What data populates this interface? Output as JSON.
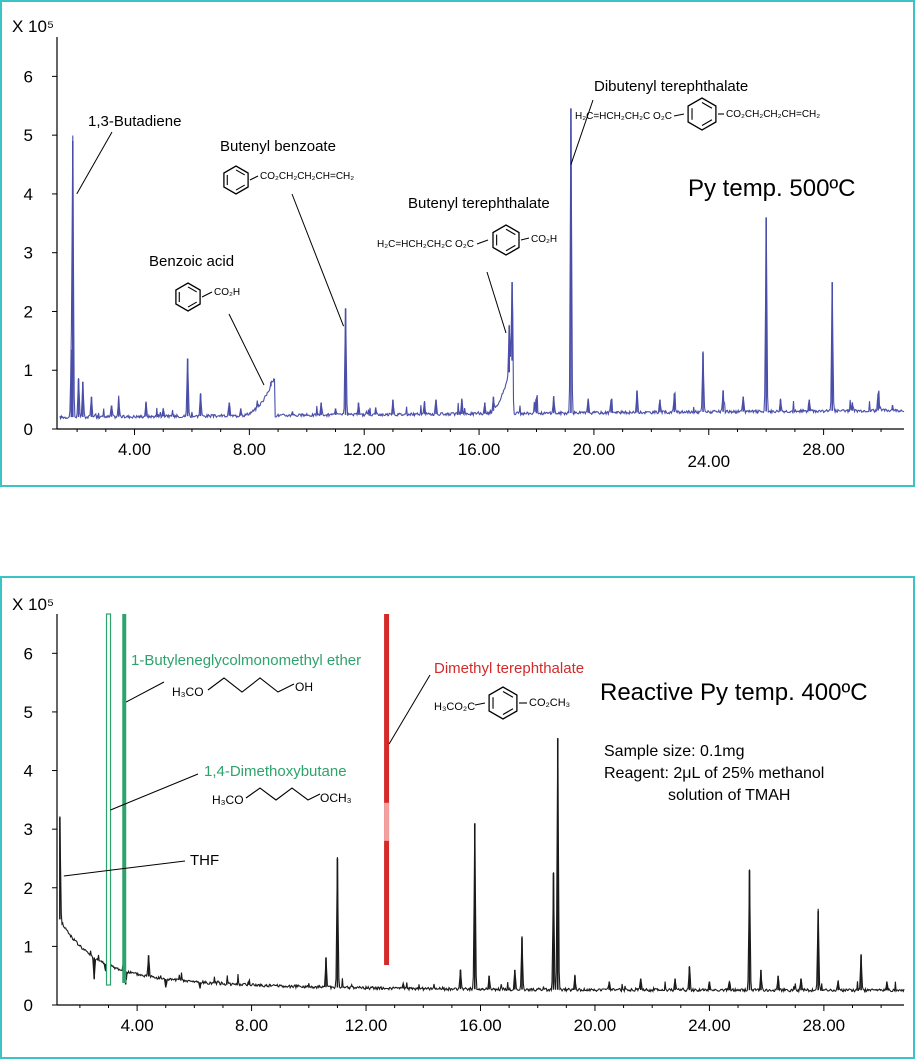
{
  "chart_data": [
    {
      "type": "line",
      "title": "",
      "condition_label": "Py temp. 500ºC",
      "y_multiplier_label": "X 10⁵",
      "xlabel": "",
      "ylabel": "",
      "xlim": [
        1.3,
        30.8
      ],
      "ylim": [
        0,
        6.5
      ],
      "x_ticks": [
        "4.00",
        "8.00",
        "12.00",
        "16.00",
        "20.00",
        "24.00",
        "28.00"
      ],
      "x_tick_values": [
        4,
        8,
        12,
        16,
        20,
        24,
        28
      ],
      "y_ticks": [
        "0",
        "1",
        "2",
        "3",
        "4",
        "5",
        "6"
      ],
      "y_tick_values": [
        0,
        1,
        2,
        3,
        4,
        5,
        6
      ],
      "line_color": "#4a4ea8",
      "baseline": 0.2,
      "peaks": [
        {
          "x": 1.85,
          "y": 4.9
        },
        {
          "x": 1.8,
          "y": 1.35
        },
        {
          "x": 2.05,
          "y": 0.85
        },
        {
          "x": 2.2,
          "y": 0.8
        },
        {
          "x": 2.5,
          "y": 0.55
        },
        {
          "x": 3.2,
          "y": 0.4
        },
        {
          "x": 3.45,
          "y": 0.5
        },
        {
          "x": 4.4,
          "y": 0.45
        },
        {
          "x": 5.0,
          "y": 0.35
        },
        {
          "x": 5.85,
          "y": 1.2
        },
        {
          "x": 6.3,
          "y": 0.6
        },
        {
          "x": 7.3,
          "y": 0.45
        },
        {
          "x": 7.7,
          "y": 0.35
        },
        {
          "x": 8.75,
          "y": 0.8
        },
        {
          "x": 9.5,
          "y": 0.3
        },
        {
          "x": 10.5,
          "y": 0.45
        },
        {
          "x": 11.0,
          "y": 0.35
        },
        {
          "x": 11.35,
          "y": 2.05
        },
        {
          "x": 11.8,
          "y": 0.45
        },
        {
          "x": 12.4,
          "y": 0.35
        },
        {
          "x": 13.0,
          "y": 0.5
        },
        {
          "x": 14.1,
          "y": 0.45
        },
        {
          "x": 14.5,
          "y": 0.5
        },
        {
          "x": 15.4,
          "y": 0.5
        },
        {
          "x": 16.2,
          "y": 0.45
        },
        {
          "x": 16.5,
          "y": 0.55
        },
        {
          "x": 17.05,
          "y": 1.75
        },
        {
          "x": 17.15,
          "y": 2.5
        },
        {
          "x": 18.0,
          "y": 0.5
        },
        {
          "x": 18.6,
          "y": 0.55
        },
        {
          "x": 19.2,
          "y": 5.45
        },
        {
          "x": 19.8,
          "y": 0.5
        },
        {
          "x": 20.6,
          "y": 0.5
        },
        {
          "x": 21.5,
          "y": 0.65
        },
        {
          "x": 22.3,
          "y": 0.5
        },
        {
          "x": 22.8,
          "y": 0.6
        },
        {
          "x": 23.8,
          "y": 1.3
        },
        {
          "x": 24.5,
          "y": 0.65
        },
        {
          "x": 25.2,
          "y": 0.55
        },
        {
          "x": 26.0,
          "y": 3.6
        },
        {
          "x": 26.5,
          "y": 0.5
        },
        {
          "x": 27.5,
          "y": 0.5
        },
        {
          "x": 28.3,
          "y": 2.5
        },
        {
          "x": 29.0,
          "y": 0.45
        },
        {
          "x": 29.9,
          "y": 0.6
        },
        {
          "x": 30.4,
          "y": 0.4
        }
      ],
      "annotations": [
        {
          "label": "1,3-Butadiene",
          "formula": "",
          "peak_x": 1.85
        },
        {
          "label": "Benzoic acid",
          "formula": "CO₂H",
          "peak_x": 8.75
        },
        {
          "label": "Butenyl benzoate",
          "formula": "CO₂CH₂CH₂CH=CH₂",
          "peak_x": 11.35
        },
        {
          "label": "Butenyl terephthalate",
          "formula_left": "H₂C=HCH₂CH₂C O₂C",
          "formula_right": "CO₂H",
          "peak_x": 17.15
        },
        {
          "label": "Dibutenyl terephthalate",
          "formula_left": "H₂C=HCH₂CH₂C O₂C",
          "formula_right": "CO₂CH₂CH₂CH=CH₂",
          "peak_x": 19.2
        }
      ]
    },
    {
      "type": "line",
      "title": "",
      "condition_label": "Reactive Py temp. 400ºC",
      "y_multiplier_label": "X 10⁵",
      "sample_size": "Sample size: 0.1mg",
      "reagent_line1": "Reagent: 2μL of 25% methanol",
      "reagent_line2": "solution of TMAH",
      "xlabel": "",
      "ylabel": "",
      "xlim": [
        1.2,
        30.8
      ],
      "ylim": [
        0,
        6.5
      ],
      "x_ticks": [
        "4.00",
        "8.00",
        "12.00",
        "16.00",
        "20.00",
        "24.00",
        "28.00"
      ],
      "x_tick_values": [
        4,
        8,
        12,
        16,
        20,
        24,
        28
      ],
      "y_ticks": [
        "0",
        "1",
        "2",
        "3",
        "4",
        "5",
        "6"
      ],
      "y_tick_values": [
        0,
        1,
        2,
        3,
        4,
        5,
        6
      ],
      "line_color": "#1a1a1a",
      "highlight_green": "#2ea36b",
      "highlight_red": "#d42a2a",
      "highlight_pink": "#f2a0a0",
      "baseline_end": 0.25,
      "peaks": [
        {
          "x": 1.3,
          "y": 3.2
        },
        {
          "x": 2.5,
          "y": 0.45
        },
        {
          "x": 2.9,
          "y": 0.6
        },
        {
          "x": 3.6,
          "y": 0.35
        },
        {
          "x": 4.4,
          "y": 0.85
        },
        {
          "x": 5.0,
          "y": 0.3
        },
        {
          "x": 6.2,
          "y": 0.3
        },
        {
          "x": 7.9,
          "y": 0.4
        },
        {
          "x": 10.6,
          "y": 0.8
        },
        {
          "x": 11.0,
          "y": 2.5
        },
        {
          "x": 12.2,
          "y": 0.3
        },
        {
          "x": 13.3,
          "y": 0.35
        },
        {
          "x": 15.3,
          "y": 0.6
        },
        {
          "x": 15.8,
          "y": 3.1
        },
        {
          "x": 16.3,
          "y": 0.5
        },
        {
          "x": 17.2,
          "y": 0.6
        },
        {
          "x": 17.45,
          "y": 1.15
        },
        {
          "x": 18.55,
          "y": 2.25
        },
        {
          "x": 18.7,
          "y": 4.55
        },
        {
          "x": 19.3,
          "y": 0.5
        },
        {
          "x": 20.5,
          "y": 0.4
        },
        {
          "x": 21.6,
          "y": 0.45
        },
        {
          "x": 22.8,
          "y": 0.45
        },
        {
          "x": 23.3,
          "y": 0.65
        },
        {
          "x": 24.0,
          "y": 0.4
        },
        {
          "x": 24.7,
          "y": 0.4
        },
        {
          "x": 25.4,
          "y": 2.3
        },
        {
          "x": 25.8,
          "y": 0.6
        },
        {
          "x": 26.4,
          "y": 0.5
        },
        {
          "x": 27.2,
          "y": 0.45
        },
        {
          "x": 27.8,
          "y": 1.6
        },
        {
          "x": 28.5,
          "y": 0.4
        },
        {
          "x": 29.3,
          "y": 0.85
        },
        {
          "x": 30.2,
          "y": 0.4
        }
      ],
      "highlighted_peaks": [
        {
          "x": 3.0,
          "color": "green",
          "style": "outline"
        },
        {
          "x": 3.55,
          "color": "green",
          "style": "solid"
        },
        {
          "x": 12.7,
          "color": "red",
          "style": "solid"
        }
      ],
      "annotations": [
        {
          "label": "1-Butyleneglycolmonomethyl ether",
          "formula_left": "H₃CO",
          "formula_right": "OH",
          "color": "green",
          "peak_x": 3.55
        },
        {
          "label": "1,4-Dimethoxybutane",
          "formula_left": "H₃CO",
          "formula_right": "OCH₃",
          "color": "green",
          "peak_x": 3.0
        },
        {
          "label": "THF",
          "color": "black",
          "peak_x": 1.3
        },
        {
          "label": "Dimethyl terephthalate",
          "formula_left": "H₃CO₂C",
          "formula_right": "CO₂CH₃",
          "color": "red",
          "peak_x": 12.7
        }
      ]
    }
  ]
}
